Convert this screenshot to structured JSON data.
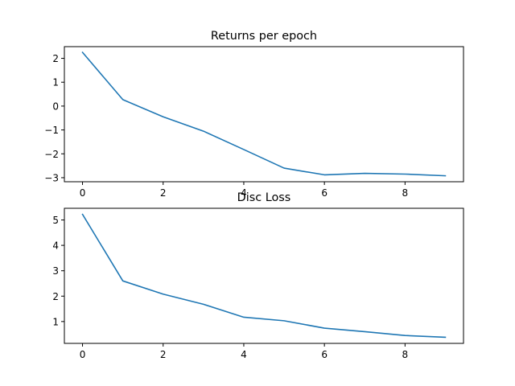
{
  "chart_data": [
    {
      "type": "line",
      "title": "Returns per epoch",
      "xlabel": "",
      "ylabel": "",
      "xlim": [
        -0.45,
        9.45
      ],
      "ylim": [
        -3.17,
        2.49
      ],
      "x_ticks": [
        0,
        2,
        4,
        6,
        8
      ],
      "y_ticks": [
        -3,
        -2,
        -1,
        0,
        1,
        2
      ],
      "x_tick_labels": [
        "0",
        "2",
        "4",
        "6",
        "8"
      ],
      "y_tick_labels": [
        "−3",
        "−2",
        "−1",
        "0",
        "1",
        "2"
      ],
      "grid": false,
      "series": [
        {
          "x": [
            0,
            1,
            2,
            3,
            4,
            5,
            6,
            7,
            8,
            9
          ],
          "values": [
            2.25,
            0.27,
            -0.45,
            -1.05,
            -1.82,
            -2.6,
            -2.88,
            -2.82,
            -2.85,
            -2.92
          ],
          "color": "#1f77b4"
        }
      ]
    },
    {
      "type": "line",
      "title": "Disc Loss",
      "xlabel": "",
      "ylabel": "",
      "xlim": [
        -0.45,
        9.45
      ],
      "ylim": [
        0.14,
        5.46
      ],
      "x_ticks": [
        0,
        2,
        4,
        6,
        8
      ],
      "y_ticks": [
        1,
        2,
        3,
        4,
        5
      ],
      "x_tick_labels": [
        "0",
        "2",
        "4",
        "6",
        "8"
      ],
      "y_tick_labels": [
        "1",
        "2",
        "3",
        "4",
        "5"
      ],
      "grid": false,
      "series": [
        {
          "x": [
            0,
            1,
            2,
            3,
            4,
            5,
            6,
            7,
            8,
            9
          ],
          "values": [
            5.22,
            2.6,
            2.08,
            1.68,
            1.17,
            1.03,
            0.74,
            0.6,
            0.45,
            0.38
          ],
          "color": "#1f77b4"
        }
      ]
    }
  ]
}
